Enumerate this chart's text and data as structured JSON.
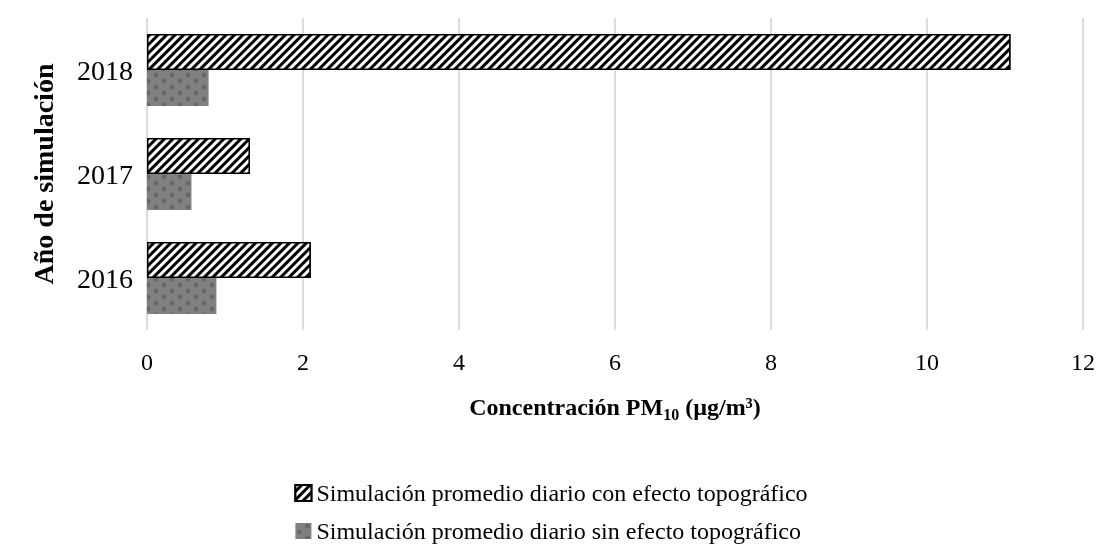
{
  "chart_data": {
    "type": "bar",
    "orientation": "horizontal",
    "xlabel": "Concentración PM$_{10}$ (µg/m³)",
    "ylabel": "Año de simulación",
    "categories": [
      "2018",
      "2017",
      "2016"
    ],
    "series": [
      {
        "name": "Simulación promedio diario con efecto topográfico",
        "color": "#000000",
        "values": [
          11.07,
          1.32,
          2.1
        ]
      },
      {
        "name": "Simulación promedio diario sin efecto topográfico",
        "color": "#808080",
        "values": [
          0.79,
          0.57,
          0.89
        ]
      }
    ],
    "xlim": [
      0,
      12
    ],
    "xticks": [
      0,
      2,
      4,
      6,
      8,
      10,
      12
    ],
    "grid": "x",
    "legend": "bottom"
  }
}
